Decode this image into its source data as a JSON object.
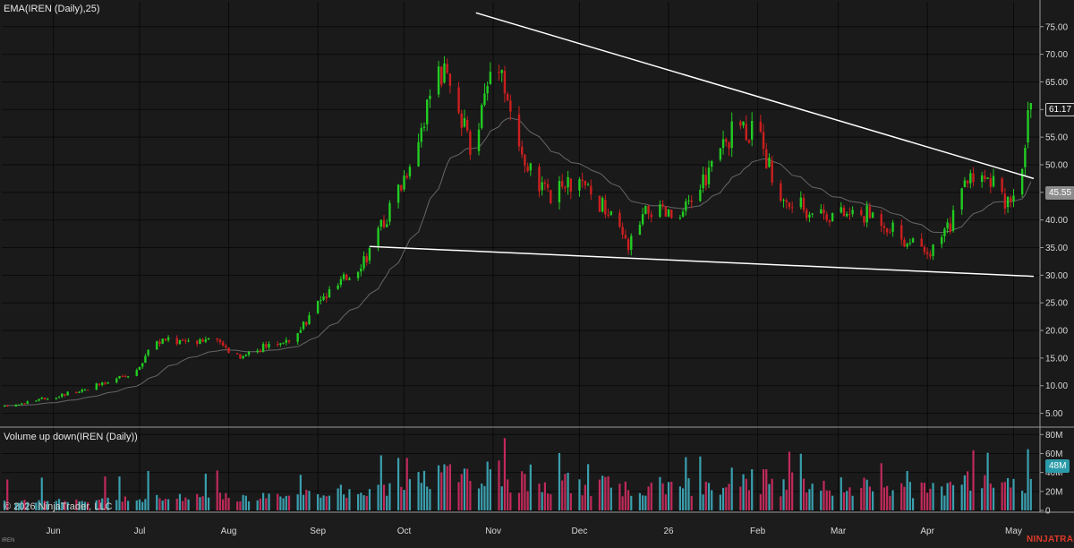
{
  "chart_data": {
    "type": "candlestick+bar",
    "symbol": "IREN",
    "price_panel": {
      "indicator_label": "EMA(IREN (Daily),25)",
      "y_ticks": [
        "75.00",
        "70.00",
        "65.00",
        "60.00",
        "55.00",
        "50.00",
        "45.00",
        "40.00",
        "35.00",
        "30.00",
        "25.00",
        "20.00",
        "15.00",
        "10.00",
        "5.00"
      ],
      "ylim": [
        2.5,
        79.5
      ],
      "last_price": "61.17",
      "ema_value": "45.55",
      "trendlines": [
        {
          "name": "upper",
          "from": {
            "x": "2025-10-26",
            "y": 77.5
          },
          "to": {
            "x": "2026-05-08",
            "y": 47.5
          }
        },
        {
          "name": "lower",
          "from": {
            "x": "2025-09-19",
            "y": 35.2
          },
          "to": {
            "x": "2026-05-08",
            "y": 29.8
          }
        }
      ],
      "anchors": [
        [
          "2025-05-15",
          6.2
        ],
        [
          "2025-06-01",
          8.0
        ],
        [
          "2025-06-20",
          10.5
        ],
        [
          "2025-07-01",
          13
        ],
        [
          "2025-07-05",
          18
        ],
        [
          "2025-07-25",
          18.5
        ],
        [
          "2025-08-05",
          15.5
        ],
        [
          "2025-08-25",
          19
        ],
        [
          "2025-09-01",
          25
        ],
        [
          "2025-09-10",
          29
        ],
        [
          "2025-09-20",
          35
        ],
        [
          "2025-10-01",
          48
        ],
        [
          "2025-10-10",
          62
        ],
        [
          "2025-10-15",
          67
        ],
        [
          "2025-10-20",
          58
        ],
        [
          "2025-10-25",
          53
        ],
        [
          "2025-11-02",
          72
        ],
        [
          "2025-11-05",
          65
        ],
        [
          "2025-11-10",
          52
        ],
        [
          "2025-11-20",
          44
        ],
        [
          "2025-11-30",
          47
        ],
        [
          "2025-12-10",
          42
        ],
        [
          "2025-12-18",
          35
        ],
        [
          "2025-12-25",
          42
        ],
        [
          "2026-01-05",
          40
        ],
        [
          "2026-01-15",
          49
        ],
        [
          "2026-01-26",
          58
        ],
        [
          "2026-02-01",
          55
        ],
        [
          "2026-02-10",
          43
        ],
        [
          "2026-02-20",
          42
        ],
        [
          "2026-03-01",
          41
        ],
        [
          "2026-03-15",
          41
        ],
        [
          "2026-03-25",
          36
        ],
        [
          "2026-04-01",
          33
        ],
        [
          "2026-04-10",
          40
        ],
        [
          "2026-04-15",
          48
        ],
        [
          "2026-04-20",
          49
        ],
        [
          "2026-04-28",
          43
        ],
        [
          "2026-05-03",
          48
        ],
        [
          "2026-05-07",
          61.17
        ]
      ]
    },
    "volume_panel": {
      "label": "Volume up down(IREN (Daily))",
      "y_ticks": [
        "80M",
        "60M",
        "40M",
        "20M",
        "0"
      ],
      "ylim": [
        0,
        85
      ],
      "last_volume": "48M"
    },
    "x_axis": {
      "start": "2025-05-15",
      "end": "2026-05-08",
      "labels": [
        {
          "text": "Jun",
          "date": "2025-06-01"
        },
        {
          "text": "Jul",
          "date": "2025-07-01"
        },
        {
          "text": "Aug",
          "date": "2025-08-01"
        },
        {
          "text": "Sep",
          "date": "2025-09-01"
        },
        {
          "text": "Oct",
          "date": "2025-10-01"
        },
        {
          "text": "Nov",
          "date": "2025-11-01"
        },
        {
          "text": "Dec",
          "date": "2025-12-01"
        },
        {
          "text": "26",
          "date": "2026-01-01"
        },
        {
          "text": "Feb",
          "date": "2026-02-01"
        },
        {
          "text": "Mar",
          "date": "2026-03-01"
        },
        {
          "text": "Apr",
          "date": "2026-04-01"
        },
        {
          "text": "May",
          "date": "2026-05-01"
        }
      ]
    },
    "colors": {
      "background": "#1a1a1a",
      "grid": "#0a0a0a",
      "up": "#22cc22",
      "down": "#cc1f1f",
      "vol_up": "#3a9fae",
      "vol_down": "#c02a5a",
      "ema": "#666666",
      "trendline": "#ffffff",
      "brand": "#e03a2a"
    }
  },
  "copyright": "© 2026 NinjaTrader, LLC",
  "brand": "NINJATRADER",
  "instrument_tag": "IREN"
}
